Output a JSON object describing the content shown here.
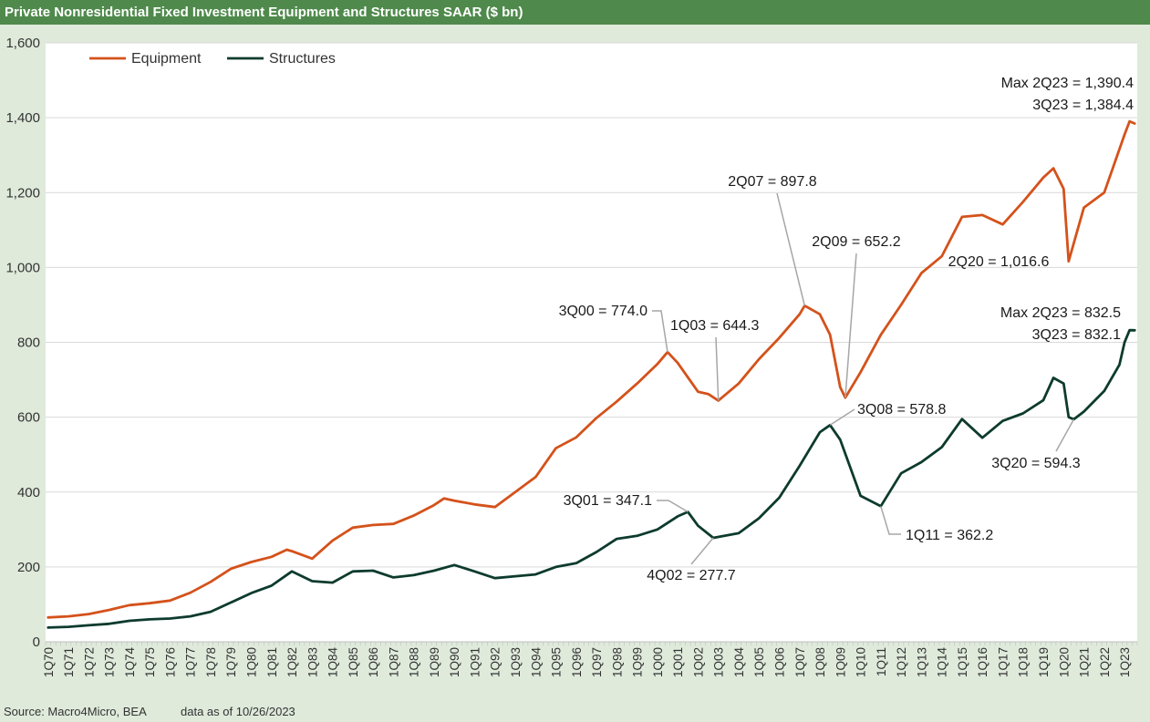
{
  "title": "Private Nonresidential Fixed Investment Equipment and Structures SAAR ($ bn)",
  "footer": {
    "source": "Source: Macro4Micro, BEA",
    "as_of": "data as of 10/26/2023"
  },
  "colors": {
    "title_bar": "#4f8a4c",
    "background": "#dfeadb",
    "plot_area": "#ffffff",
    "equipment": "#d4521b",
    "structures": "#0d3b2e",
    "gridline": "#d9d9d9",
    "leader_line": "#a6a6a6"
  },
  "chart_data": {
    "type": "line",
    "ylim": [
      0,
      1600
    ],
    "yticks": [
      0,
      200,
      400,
      600,
      800,
      1000,
      1200,
      1400,
      1600
    ],
    "ytick_labels": [
      "0",
      "200",
      "400",
      "600",
      "800",
      "1,000",
      "1,200",
      "1,400",
      "1,600"
    ],
    "grid": true,
    "legend_position": "top-left",
    "x_start": "1Q70",
    "x_end": "3Q23",
    "xtick_labels": [
      "1Q70",
      "1Q71",
      "1Q72",
      "1Q73",
      "1Q74",
      "1Q75",
      "1Q76",
      "1Q77",
      "1Q78",
      "1Q79",
      "1Q80",
      "1Q81",
      "1Q82",
      "1Q83",
      "1Q84",
      "1Q85",
      "1Q86",
      "1Q87",
      "1Q88",
      "1Q89",
      "1Q90",
      "1Q91",
      "1Q92",
      "1Q93",
      "1Q94",
      "1Q95",
      "1Q96",
      "1Q97",
      "1Q98",
      "1Q99",
      "1Q00",
      "1Q01",
      "1Q02",
      "1Q03",
      "1Q04",
      "1Q05",
      "1Q06",
      "1Q07",
      "1Q08",
      "1Q09",
      "1Q10",
      "1Q11",
      "1Q12",
      "1Q13",
      "1Q14",
      "1Q15",
      "1Q16",
      "1Q17",
      "1Q18",
      "1Q19",
      "1Q20",
      "1Q21",
      "1Q22",
      "1Q23"
    ],
    "series": [
      {
        "name": "Equipment",
        "color": "#d4521b",
        "points": [
          [
            "1Q70",
            65
          ],
          [
            "1Q71",
            68
          ],
          [
            "1Q72",
            74
          ],
          [
            "1Q73",
            85
          ],
          [
            "1Q74",
            98
          ],
          [
            "1Q75",
            103
          ],
          [
            "1Q76",
            110
          ],
          [
            "1Q77",
            131
          ],
          [
            "1Q78",
            160
          ],
          [
            "1Q79",
            195
          ],
          [
            "1Q80",
            213
          ],
          [
            "1Q81",
            227
          ],
          [
            "4Q81",
            246
          ],
          [
            "1Q82",
            242
          ],
          [
            "1Q83",
            222
          ],
          [
            "1Q84",
            270
          ],
          [
            "1Q85",
            305
          ],
          [
            "1Q86",
            312
          ],
          [
            "1Q87",
            315
          ],
          [
            "1Q88",
            337
          ],
          [
            "1Q89",
            365
          ],
          [
            "3Q89",
            383
          ],
          [
            "1Q90",
            377
          ],
          [
            "1Q91",
            367
          ],
          [
            "1Q92",
            360
          ],
          [
            "1Q93",
            400
          ],
          [
            "1Q94",
            440
          ],
          [
            "1Q95",
            517
          ],
          [
            "1Q96",
            546
          ],
          [
            "1Q97",
            598
          ],
          [
            "1Q98",
            642
          ],
          [
            "1Q99",
            690
          ],
          [
            "1Q00",
            742
          ],
          [
            "3Q00",
            774.0
          ],
          [
            "1Q01",
            745
          ],
          [
            "1Q02",
            668
          ],
          [
            "3Q02",
            662
          ],
          [
            "1Q03",
            644.3
          ],
          [
            "1Q04",
            690
          ],
          [
            "1Q05",
            755
          ],
          [
            "1Q06",
            812
          ],
          [
            "1Q07",
            875
          ],
          [
            "2Q07",
            897.8
          ],
          [
            "1Q08",
            875
          ],
          [
            "3Q08",
            820
          ],
          [
            "1Q09",
            680
          ],
          [
            "2Q09",
            652.2
          ],
          [
            "1Q10",
            720
          ],
          [
            "1Q11",
            820
          ],
          [
            "1Q12",
            900
          ],
          [
            "1Q13",
            985
          ],
          [
            "1Q14",
            1030
          ],
          [
            "1Q15",
            1135
          ],
          [
            "1Q16",
            1140
          ],
          [
            "1Q17",
            1115
          ],
          [
            "1Q18",
            1175
          ],
          [
            "1Q19",
            1240
          ],
          [
            "3Q19",
            1265
          ],
          [
            "1Q20",
            1210
          ],
          [
            "2Q20",
            1016.6
          ],
          [
            "1Q21",
            1160
          ],
          [
            "1Q22",
            1200
          ],
          [
            "1Q23",
            1355
          ],
          [
            "2Q23",
            1390.4
          ],
          [
            "3Q23",
            1384.4
          ]
        ]
      },
      {
        "name": "Structures",
        "color": "#0d3b2e",
        "points": [
          [
            "1Q70",
            38
          ],
          [
            "1Q71",
            40
          ],
          [
            "1Q72",
            44
          ],
          [
            "1Q73",
            48
          ],
          [
            "1Q74",
            56
          ],
          [
            "1Q75",
            60
          ],
          [
            "1Q76",
            62
          ],
          [
            "1Q77",
            68
          ],
          [
            "1Q78",
            80
          ],
          [
            "1Q79",
            105
          ],
          [
            "1Q80",
            130
          ],
          [
            "1Q81",
            150
          ],
          [
            "1Q82",
            188
          ],
          [
            "1Q83",
            162
          ],
          [
            "1Q84",
            158
          ],
          [
            "1Q85",
            188
          ],
          [
            "1Q86",
            190
          ],
          [
            "1Q87",
            172
          ],
          [
            "1Q88",
            178
          ],
          [
            "1Q89",
            190
          ],
          [
            "1Q90",
            205
          ],
          [
            "1Q91",
            188
          ],
          [
            "1Q92",
            170
          ],
          [
            "1Q93",
            175
          ],
          [
            "1Q94",
            180
          ],
          [
            "1Q95",
            200
          ],
          [
            "1Q96",
            210
          ],
          [
            "1Q97",
            240
          ],
          [
            "1Q98",
            275
          ],
          [
            "1Q99",
            283
          ],
          [
            "1Q00",
            300
          ],
          [
            "1Q01",
            335
          ],
          [
            "3Q01",
            347.1
          ],
          [
            "1Q02",
            310
          ],
          [
            "4Q02",
            277.7
          ],
          [
            "1Q04",
            290
          ],
          [
            "1Q05",
            330
          ],
          [
            "1Q06",
            385
          ],
          [
            "1Q07",
            470
          ],
          [
            "1Q08",
            560
          ],
          [
            "3Q08",
            578.8
          ],
          [
            "1Q09",
            540
          ],
          [
            "1Q10",
            390
          ],
          [
            "1Q11",
            362.2
          ],
          [
            "1Q12",
            450
          ],
          [
            "1Q13",
            480
          ],
          [
            "1Q14",
            520
          ],
          [
            "1Q15",
            595
          ],
          [
            "1Q16",
            545
          ],
          [
            "1Q17",
            590
          ],
          [
            "1Q18",
            610
          ],
          [
            "1Q19",
            645
          ],
          [
            "3Q19",
            705
          ],
          [
            "1Q20",
            690
          ],
          [
            "2Q20",
            600
          ],
          [
            "3Q20",
            594.3
          ],
          [
            "1Q21",
            615
          ],
          [
            "1Q22",
            670
          ],
          [
            "4Q22",
            740
          ],
          [
            "1Q23",
            800
          ],
          [
            "2Q23",
            832.5
          ],
          [
            "3Q23",
            832.1
          ]
        ]
      }
    ],
    "annotations": [
      {
        "series": "Equipment",
        "at": "2Q23",
        "value": 1390.4,
        "lines": [
          "Max 2Q23 = 1,390.4",
          "3Q23 = 1,384.4"
        ],
        "leader": false
      },
      {
        "series": "Equipment",
        "at": "2Q07",
        "value": 897.8,
        "lines": [
          "2Q07 = 897.8"
        ],
        "leader": true
      },
      {
        "series": "Equipment",
        "at": "2Q09",
        "value": 652.2,
        "lines": [
          "2Q09 = 652.2"
        ],
        "leader": true
      },
      {
        "series": "Equipment",
        "at": "2Q20",
        "value": 1016.6,
        "lines": [
          "2Q20 = 1,016.6"
        ],
        "leader": false
      },
      {
        "series": "Equipment",
        "at": "3Q00",
        "value": 774.0,
        "lines": [
          "3Q00 = 774.0"
        ],
        "leader": true
      },
      {
        "series": "Equipment",
        "at": "1Q03",
        "value": 644.3,
        "lines": [
          "1Q03 = 644.3"
        ],
        "leader": true
      },
      {
        "series": "Structures",
        "at": "2Q23",
        "value": 832.5,
        "lines": [
          "Max 2Q23 = 832.5",
          "3Q23 = 832.1"
        ],
        "leader": false
      },
      {
        "series": "Structures",
        "at": "3Q08",
        "value": 578.8,
        "lines": [
          "3Q08 = 578.8"
        ],
        "leader": true
      },
      {
        "series": "Structures",
        "at": "3Q20",
        "value": 594.3,
        "lines": [
          "3Q20 = 594.3"
        ],
        "leader": true
      },
      {
        "series": "Structures",
        "at": "3Q01",
        "value": 347.1,
        "lines": [
          "3Q01 = 347.1"
        ],
        "leader": true
      },
      {
        "series": "Structures",
        "at": "4Q02",
        "value": 277.7,
        "lines": [
          "4Q02 = 277.7"
        ],
        "leader": true
      },
      {
        "series": "Structures",
        "at": "1Q11",
        "value": 362.2,
        "lines": [
          "1Q11 = 362.2"
        ],
        "leader": true
      }
    ]
  }
}
